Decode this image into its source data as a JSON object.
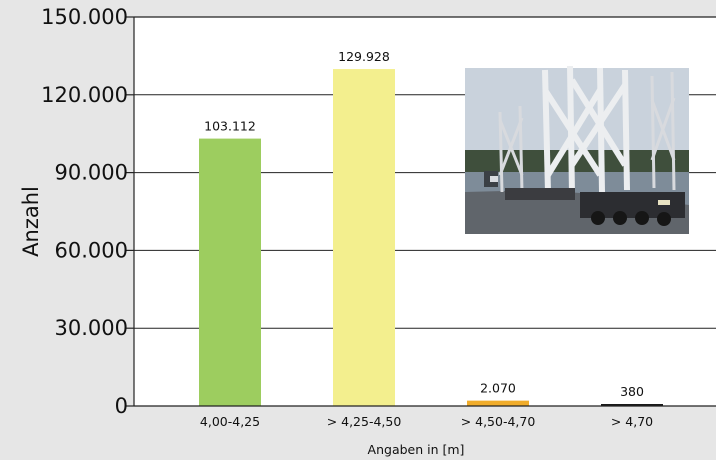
{
  "chart_data": {
    "type": "bar",
    "categories": [
      "4,00-4,25",
      "> 4,25-4,50",
      "> 4,50-4,70",
      "> 4,70"
    ],
    "values": [
      103112,
      129928,
      2070,
      380
    ],
    "value_labels": [
      "103.112",
      "129.928",
      "2.070",
      "380"
    ],
    "colors": [
      "#9dcd5f",
      "#f3ef8e",
      "#f0ac2a",
      "#1a1a1a"
    ],
    "ylabel": "Anzahl",
    "xlabel": "Angaben in [m]",
    "ylim": [
      0,
      150000
    ],
    "yticks": [
      0,
      30000,
      60000,
      90000,
      120000,
      150000
    ],
    "ytick_labels": [
      "0",
      "30.000",
      "60.000",
      "90.000",
      "120.000",
      "150.000"
    ],
    "grid": "horizontal",
    "legend": "none"
  },
  "photo": {
    "icon": "heavy-transport-truck-photo"
  }
}
